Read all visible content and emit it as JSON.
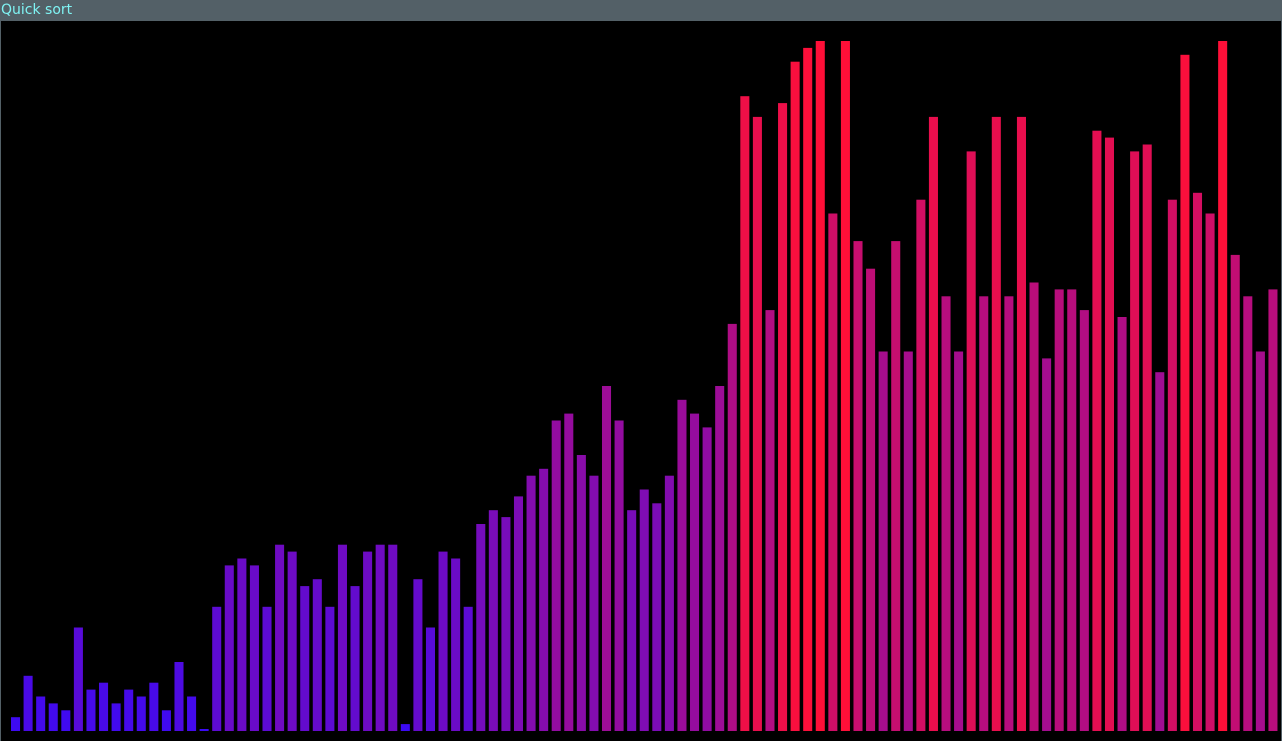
{
  "window": {
    "title": "Quick sort"
  },
  "colors": {
    "titlebar_bg": "#536067",
    "title_text": "#7ff3f3",
    "canvas_bg": "#000000",
    "low_bar": "#3a0af5",
    "high_bar": "#ff0f38"
  },
  "chart_data": {
    "type": "bar",
    "title": "",
    "xlabel": "",
    "ylabel": "",
    "ylim": [
      0,
      100
    ],
    "values": [
      2,
      8,
      5,
      4,
      3,
      15,
      6,
      7,
      4,
      6,
      5,
      7,
      3,
      10,
      5,
      0,
      18,
      24,
      25,
      24,
      18,
      27,
      26,
      21,
      22,
      18,
      27,
      21,
      26,
      27,
      27,
      1,
      22,
      15,
      26,
      25,
      18,
      30,
      32,
      31,
      34,
      37,
      38,
      45,
      46,
      40,
      37,
      50,
      45,
      32,
      35,
      33,
      37,
      48,
      46,
      44,
      50,
      59,
      92,
      89,
      61,
      91,
      97,
      99,
      100,
      75,
      100,
      71,
      67,
      55,
      71,
      55,
      77,
      89,
      63,
      55,
      84,
      63,
      89,
      63,
      89,
      65,
      54,
      64,
      64,
      61,
      87,
      86,
      60,
      84,
      85,
      52,
      77,
      98,
      78,
      75,
      100,
      69,
      63,
      55,
      64
    ]
  }
}
